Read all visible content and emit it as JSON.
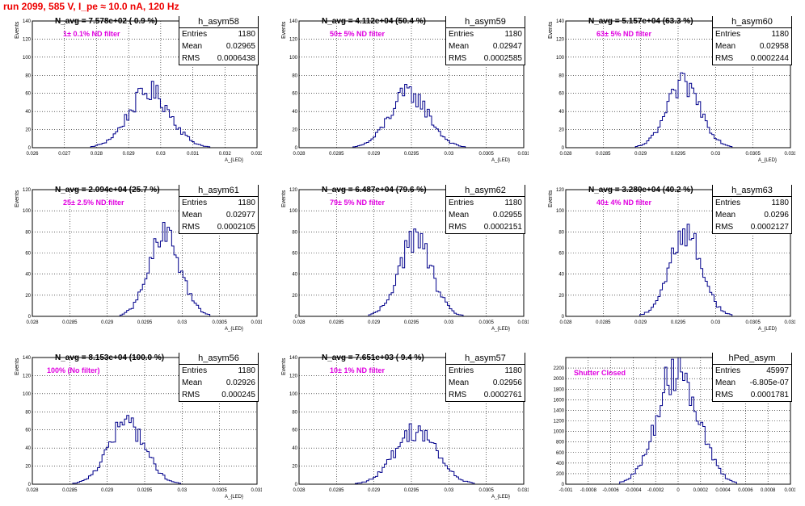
{
  "header": {
    "title": "run 2099,   585 V, I_pe ≈ 10.0 nA, 120 Hz"
  },
  "colors": {
    "histogram": "#00008b",
    "filter_text": "#e000e0",
    "title": "#ee0000"
  },
  "chart_data": [
    {
      "type": "histogram",
      "name": "h_asym58",
      "navg_label": "N_avg = 7.578e+02 ( 0.9 %)",
      "filter_label": "1± 0.1% ND filter",
      "stats": {
        "entries": "1180",
        "mean": "0.02965",
        "rms": "0.0006438"
      },
      "xlim": [
        0.026,
        0.033
      ],
      "ylim": [
        0,
        140
      ],
      "xticks": [
        "0.026",
        "0.027",
        "0.028",
        "0.029",
        "0.03",
        "0.031",
        "0.032",
        "0.033"
      ],
      "yticks": [
        "0",
        "20",
        "40",
        "60",
        "80",
        "100",
        "120",
        "140"
      ],
      "mean": 0.02965,
      "rms": 0.0006438,
      "peak": 62,
      "nbins": 100,
      "xlabel": "A_{LED}",
      "ylabel": "Events"
    },
    {
      "type": "histogram",
      "name": "h_asym59",
      "navg_label": "N_avg = 4.112e+04 (50.4 %)",
      "filter_label": "50± 5% ND filter",
      "stats": {
        "entries": "1180",
        "mean": "0.02947",
        "rms": "0.0002585"
      },
      "xlim": [
        0.028,
        0.031
      ],
      "ylim": [
        0,
        140
      ],
      "xticks": [
        "0.028",
        "0.0285",
        "0.029",
        "0.0295",
        "0.03",
        "0.0305",
        "0.031"
      ],
      "yticks": [
        "0",
        "20",
        "40",
        "60",
        "80",
        "100",
        "120",
        "140"
      ],
      "mean": 0.02947,
      "rms": 0.0002585,
      "peak": 60,
      "nbins": 100,
      "xlabel": "A_{LED}",
      "ylabel": "Events"
    },
    {
      "type": "histogram",
      "name": "h_asym60",
      "navg_label": "N_avg = 5.157e+04 (63.3 %)",
      "filter_label": "63± 5% ND filter",
      "stats": {
        "entries": "1180",
        "mean": "0.02958",
        "rms": "0.0002244"
      },
      "xlim": [
        0.028,
        0.031
      ],
      "ylim": [
        0,
        140
      ],
      "xticks": [
        "0.028",
        "0.0285",
        "0.029",
        "0.0295",
        "0.03",
        "0.0305",
        "0.031"
      ],
      "yticks": [
        "0",
        "20",
        "40",
        "60",
        "80",
        "100",
        "120",
        "140"
      ],
      "mean": 0.02958,
      "rms": 0.0002244,
      "peak": 70,
      "nbins": 100,
      "xlabel": "A_{LED}",
      "ylabel": "Events"
    },
    {
      "type": "histogram",
      "name": "h_asym61",
      "navg_label": "N_avg = 2.094e+04 (25.7 %)",
      "filter_label": "25± 2.5% ND filter",
      "stats": {
        "entries": "1180",
        "mean": "0.02977",
        "rms": "0.0002105"
      },
      "xlim": [
        0.028,
        0.031
      ],
      "ylim": [
        0,
        120
      ],
      "xticks": [
        "0.028",
        "0.0285",
        "0.029",
        "0.0295",
        "0.03",
        "0.0305",
        "0.031"
      ],
      "yticks": [
        "0",
        "20",
        "40",
        "60",
        "80",
        "100",
        "120"
      ],
      "mean": 0.02977,
      "rms": 0.0002105,
      "peak": 76,
      "nbins": 100,
      "xlabel": "A_{LED}",
      "ylabel": "Events"
    },
    {
      "type": "histogram",
      "name": "h_asym62",
      "navg_label": "N_avg = 6.487e+04 (79.6 %)",
      "filter_label": "79± 5% ND filter",
      "stats": {
        "entries": "1180",
        "mean": "0.02955",
        "rms": "0.0002151"
      },
      "xlim": [
        0.028,
        0.031
      ],
      "ylim": [
        0,
        120
      ],
      "xticks": [
        "0.028",
        "0.0285",
        "0.029",
        "0.0295",
        "0.03",
        "0.0305",
        "0.031"
      ],
      "yticks": [
        "0",
        "20",
        "40",
        "60",
        "80",
        "100",
        "120"
      ],
      "mean": 0.02955,
      "rms": 0.0002151,
      "peak": 74,
      "nbins": 100,
      "xlabel": "A_{LED}",
      "ylabel": "Events"
    },
    {
      "type": "histogram",
      "name": "h_asym63",
      "navg_label": "N_avg = 3.280e+04 (40.2 %)",
      "filter_label": "40± 4% ND filter",
      "stats": {
        "entries": "1180",
        "mean": "0.0296",
        "rms": "0.0002127"
      },
      "xlim": [
        0.028,
        0.031
      ],
      "ylim": [
        0,
        120
      ],
      "xticks": [
        "0.028",
        "0.0285",
        "0.029",
        "0.0295",
        "0.03",
        "0.0305",
        "0.031"
      ],
      "yticks": [
        "0",
        "20",
        "40",
        "60",
        "80",
        "100",
        "120"
      ],
      "mean": 0.0296,
      "rms": 0.0002127,
      "peak": 80,
      "nbins": 100,
      "xlabel": "A_{LED}",
      "ylabel": "Events"
    },
    {
      "type": "histogram",
      "name": "h_asym56",
      "navg_label": "N_avg = 8.153e+04 (100.0 %)",
      "filter_label": "100% (No filter)",
      "stats": {
        "entries": "1180",
        "mean": "0.02926",
        "rms": "0.000245"
      },
      "xlim": [
        0.028,
        0.031
      ],
      "ylim": [
        0,
        140
      ],
      "xticks": [
        "0.028",
        "0.0285",
        "0.029",
        "0.0295",
        "0.03",
        "0.0305",
        "0.031"
      ],
      "yticks": [
        "0",
        "20",
        "40",
        "60",
        "80",
        "100",
        "120",
        "140"
      ],
      "mean": 0.02926,
      "rms": 0.000245,
      "peak": 68,
      "nbins": 100,
      "xlabel": "A_{LED}",
      "ylabel": "Events"
    },
    {
      "type": "histogram",
      "name": "h_asym57",
      "navg_label": "N_avg = 7.651e+03 ( 9.4 %)",
      "filter_label": "10± 1% ND filter",
      "stats": {
        "entries": "1180",
        "mean": "0.02956",
        "rms": "0.0002761"
      },
      "xlim": [
        0.028,
        0.031
      ],
      "ylim": [
        0,
        140
      ],
      "xticks": [
        "0.028",
        "0.0285",
        "0.029",
        "0.0295",
        "0.03",
        "0.0305",
        "0.031"
      ],
      "yticks": [
        "0",
        "20",
        "40",
        "60",
        "80",
        "100",
        "120",
        "140"
      ],
      "mean": 0.02956,
      "rms": 0.0002761,
      "peak": 60,
      "nbins": 100,
      "xlabel": "A_{LED}",
      "ylabel": "Events"
    },
    {
      "type": "histogram",
      "name": "hPed_asym",
      "navg_label": "",
      "filter_label": "Shutter Closed",
      "stats": {
        "entries": "45997",
        "mean": "-6.805e-07",
        "rms": "0.0001781"
      },
      "xlim": [
        -0.001,
        0.001
      ],
      "ylim": [
        0,
        2400
      ],
      "xticks": [
        "-0.001",
        "-0.0008",
        "-0.0006",
        "-0.0004",
        "-0.0002",
        "0",
        "0.0002",
        "0.0004",
        "0.0006",
        "0.0008",
        "0.001"
      ],
      "yticks": [
        "0",
        "200",
        "400",
        "600",
        "800",
        "1000",
        "1200",
        "1400",
        "1600",
        "1800",
        "2000",
        "2200"
      ],
      "mean": -6.8e-07,
      "rms": 0.0001781,
      "peak": 2240,
      "nbins": 100,
      "xlabel": "",
      "ylabel": ""
    }
  ]
}
